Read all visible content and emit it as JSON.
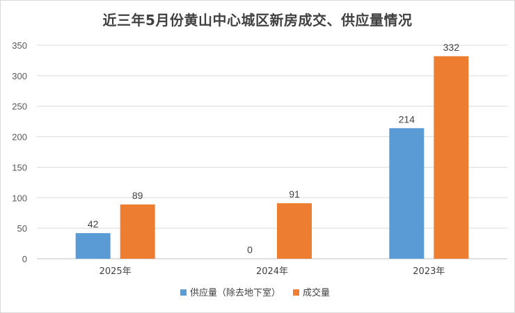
{
  "chart_data": {
    "type": "bar",
    "title": "近三年5月份黄山中心城区新房成交、供应量情况",
    "categories": [
      "2025年",
      "2024年",
      "2023年"
    ],
    "series": [
      {
        "name": "供应量（除去地下室）",
        "values": [
          42,
          0,
          214
        ],
        "color": "#5b9bd5"
      },
      {
        "name": "成交量",
        "values": [
          89,
          91,
          332
        ],
        "color": "#ed7d31"
      }
    ],
    "ylim": [
      0,
      350
    ],
    "yticks": [
      0,
      50,
      100,
      150,
      200,
      250,
      300,
      350
    ],
    "xlabel": "",
    "ylabel": "",
    "grid": true,
    "legend_position": "bottom"
  }
}
